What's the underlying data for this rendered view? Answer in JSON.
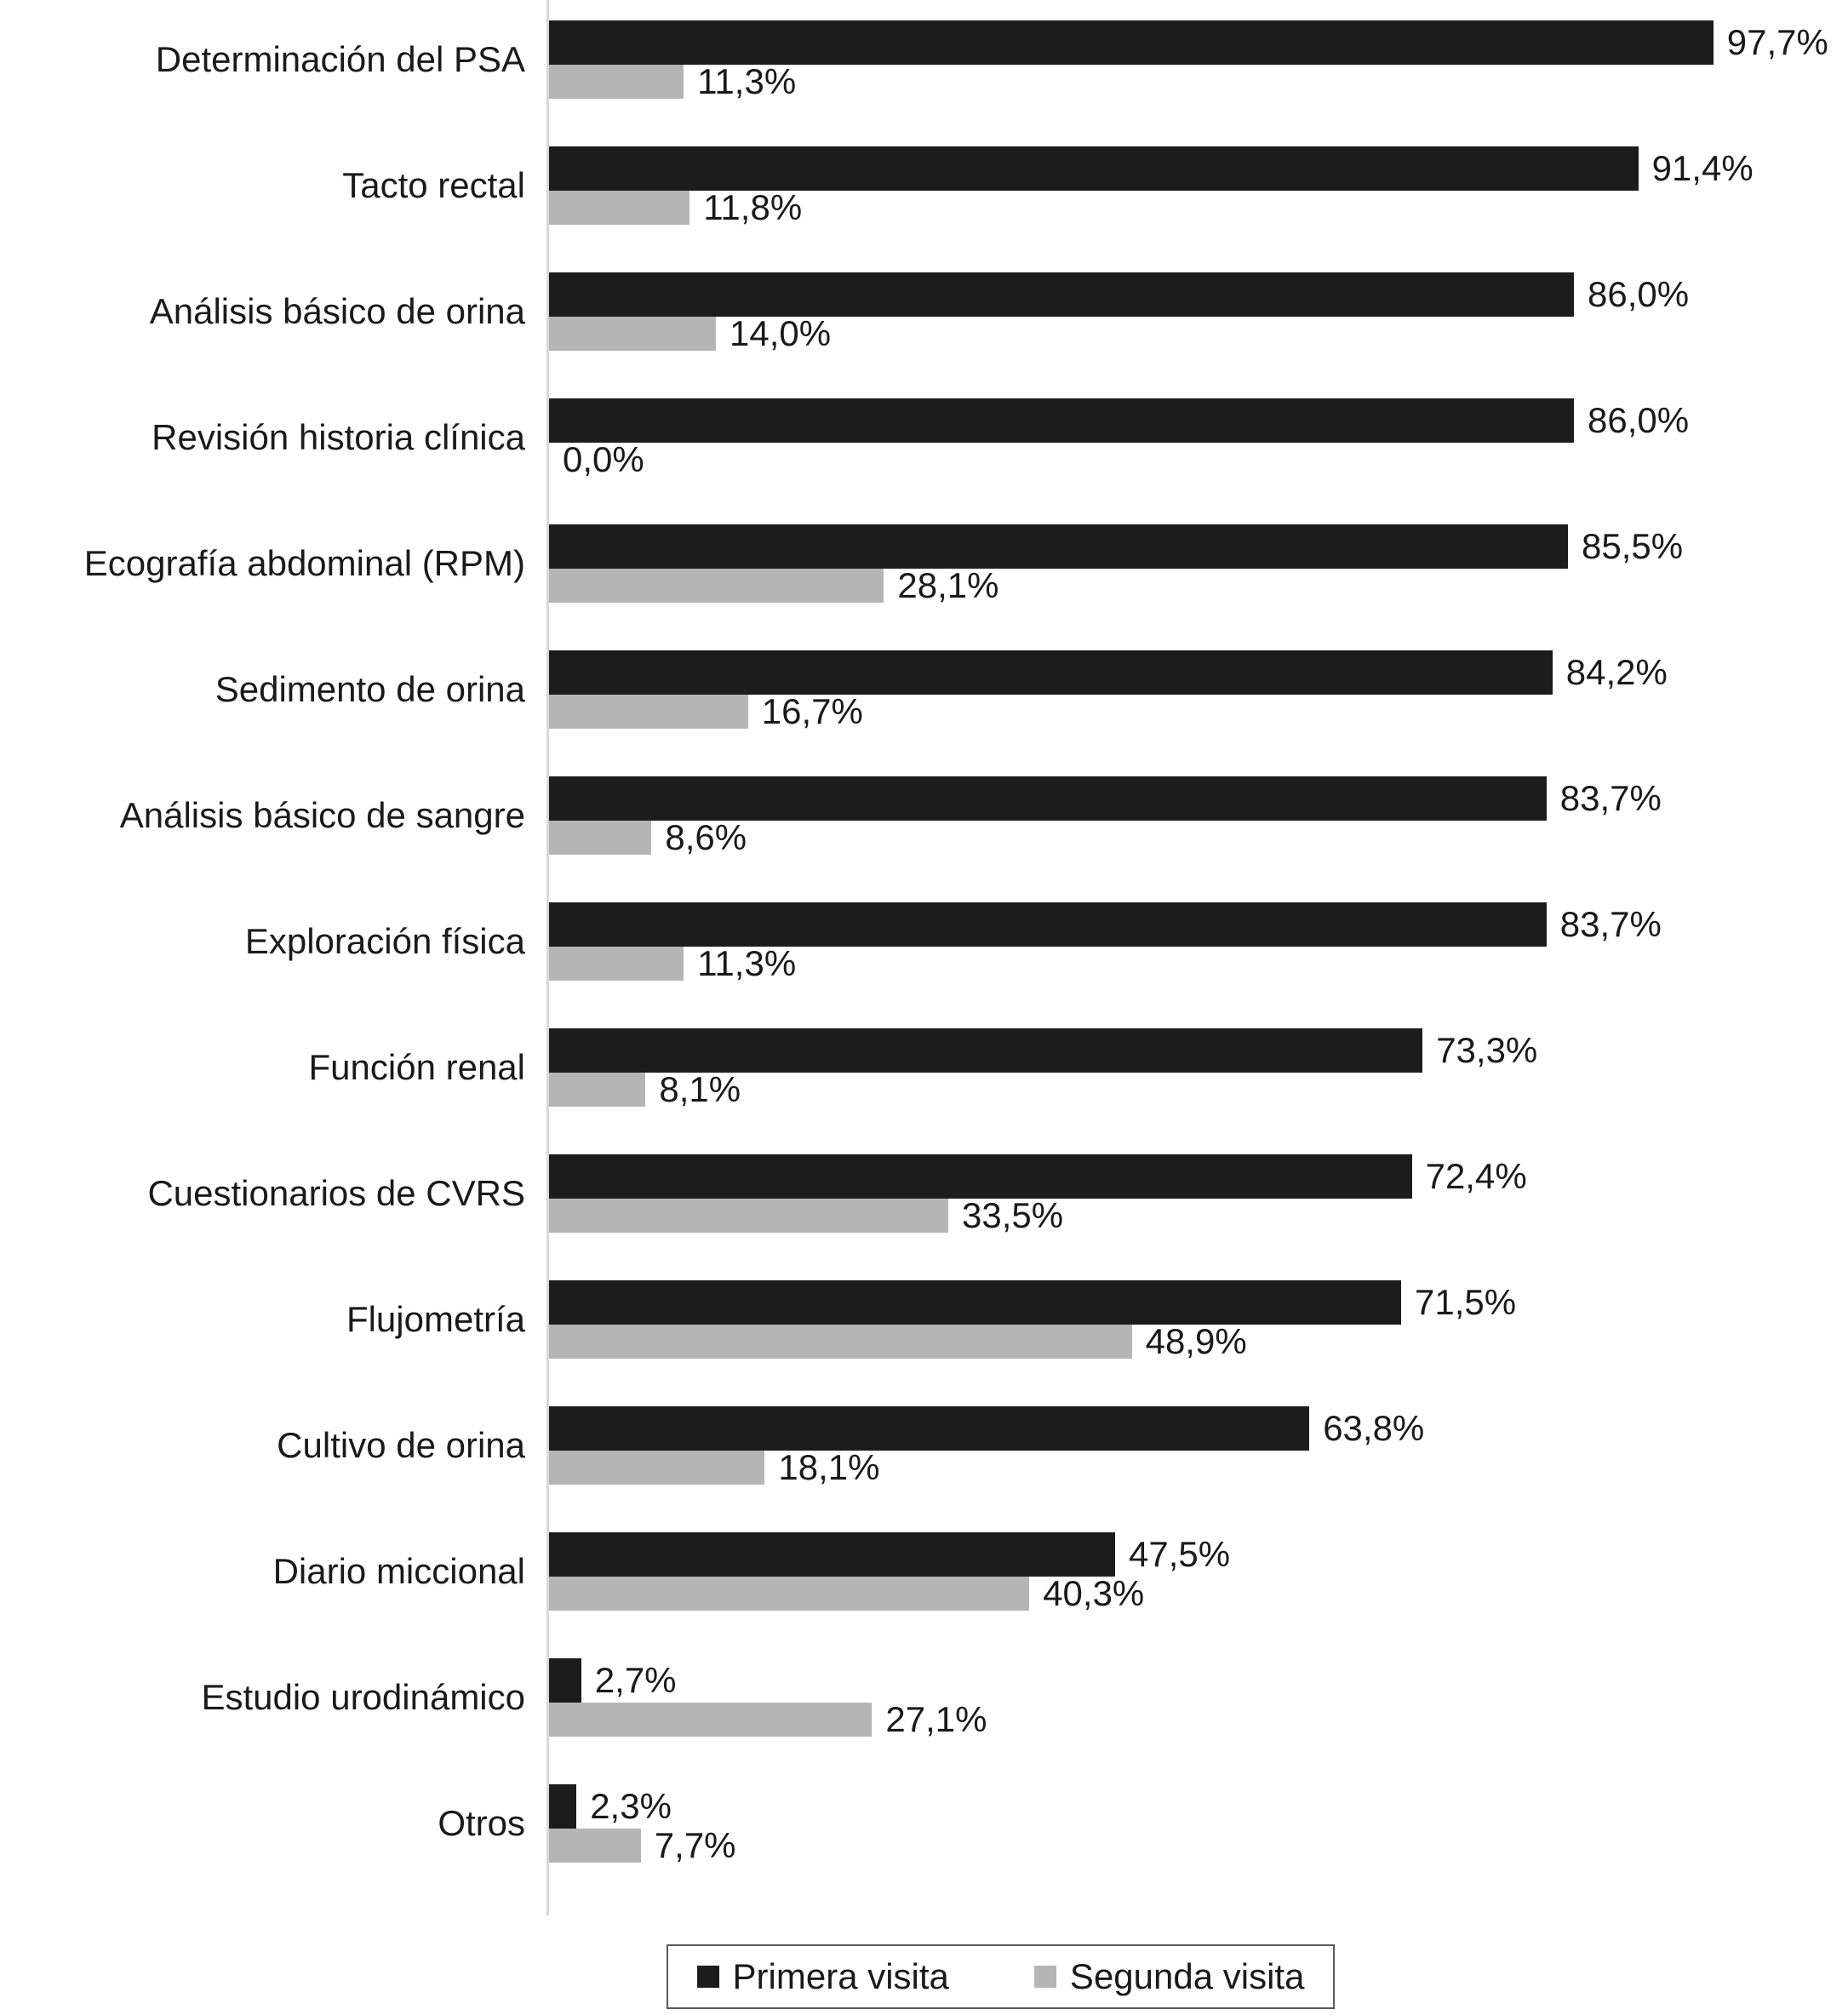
{
  "chart_data": {
    "type": "bar",
    "orientation": "horizontal",
    "title": "",
    "xlabel": "",
    "ylabel": "",
    "xlim": [
      0,
      100
    ],
    "grid": false,
    "legend_position": "bottom",
    "value_label_format": "percent-comma-decimal",
    "categories": [
      "Determinación del PSA",
      "Tacto rectal",
      "Análisis básico de orina",
      "Revisión historia clínica",
      "Ecografía abdominal (RPM)",
      "Sedimento de orina",
      "Análisis básico de sangre",
      "Exploración física",
      "Función renal",
      "Cuestionarios de CVRS",
      "Flujometría",
      "Cultivo de orina",
      "Diario miccional",
      "Estudio urodinámico",
      "Otros"
    ],
    "series": [
      {
        "name": "Primera visita",
        "color": "#1c1c1c",
        "values": [
          97.7,
          91.4,
          86.0,
          86.0,
          85.5,
          84.2,
          83.7,
          83.7,
          73.3,
          72.4,
          71.5,
          63.8,
          47.5,
          2.7,
          2.3
        ]
      },
      {
        "name": "Segunda visita",
        "color": "#b5b5b5",
        "values": [
          11.3,
          11.8,
          14.0,
          0.0,
          28.1,
          16.7,
          8.6,
          11.3,
          8.1,
          33.5,
          48.9,
          18.1,
          40.3,
          27.1,
          7.7
        ]
      }
    ],
    "colors": {
      "text": "#1a1a1a",
      "axis_line": "#d9d9d9",
      "background": "#ffffff",
      "legend_border": "#595959"
    }
  }
}
